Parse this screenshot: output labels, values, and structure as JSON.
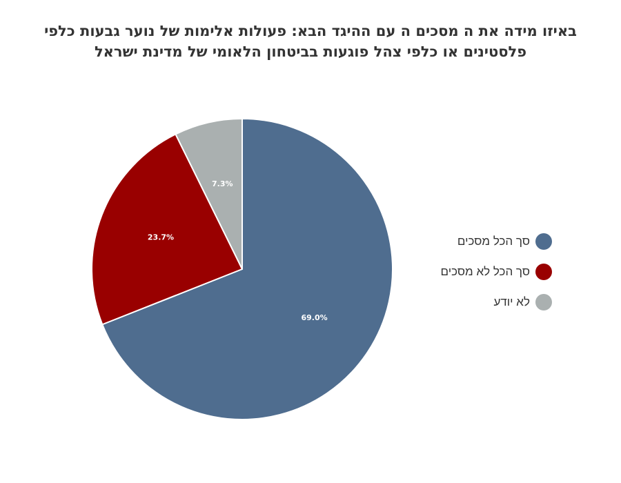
{
  "chart_data": {
    "type": "pie",
    "title_lines": [
      "באיזו מידה את ה מסכים ה עם ההיגד הבא: פעולות אלימות של נוער גבעות כלפי",
      "פלסטינים או כלפי צהל פוגעות בביטחון הלאומי של מדינת ישראל"
    ],
    "start_angle_deg": 0,
    "slices": [
      {
        "label": "סך הכל מסכים",
        "value": 69.0,
        "display": "69.0%",
        "color": "#4f6d8f"
      },
      {
        "label": "סך הכל לא מסכים",
        "value": 23.7,
        "display": "23.7%",
        "color": "#990000"
      },
      {
        "label": "לא יודע",
        "value": 7.3,
        "display": "7.3%",
        "color": "#aab0b0"
      }
    ],
    "legend_position": "right"
  }
}
